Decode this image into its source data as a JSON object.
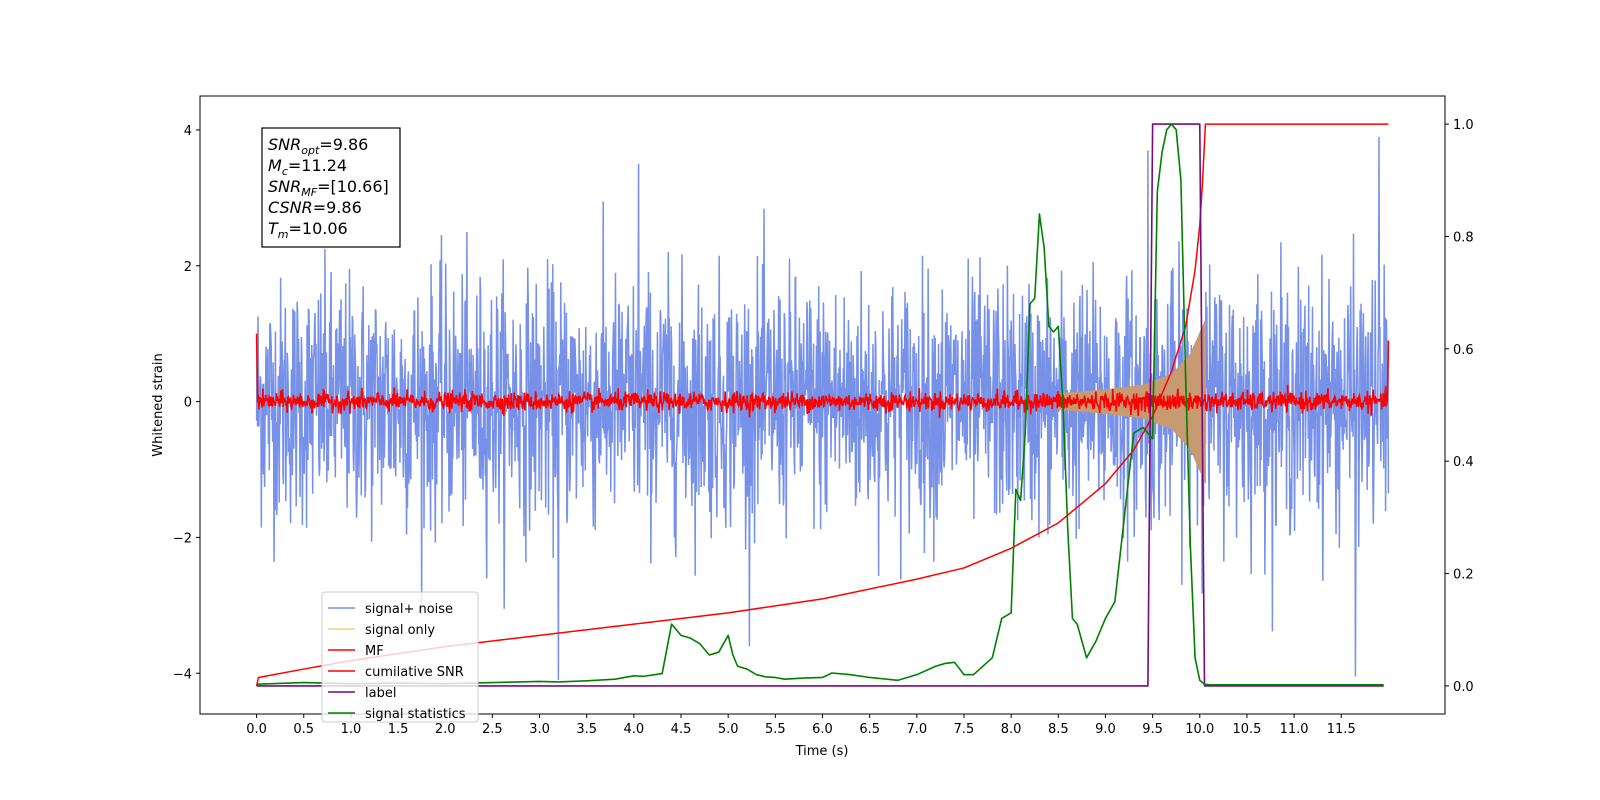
{
  "chart_data": {
    "type": "line",
    "xlabel": "Time (s)",
    "ylabel_left": "Whitened strain",
    "ylabel_right": "",
    "xlim": [
      -0.6,
      12.6
    ],
    "ylim_left": [
      -4.6,
      4.5
    ],
    "ylim_right": [
      -0.05,
      1.05
    ],
    "x_ticks": [
      0.0,
      0.5,
      1.0,
      1.5,
      2.0,
      2.5,
      3.0,
      3.5,
      4.0,
      4.5,
      5.0,
      5.5,
      6.0,
      6.5,
      7.0,
      7.5,
      8.0,
      8.5,
      9.0,
      9.5,
      10.0,
      10.5,
      11.0,
      11.5
    ],
    "x_tick_labels": [
      "0.0",
      "0.5",
      "1.0",
      "1.5",
      "2.0",
      "2.5",
      "3.0",
      "3.5",
      "4.0",
      "4.5",
      "5.0",
      "5.5",
      "6.0",
      "6.5",
      "7.0",
      "7.5",
      "8.0",
      "8.5",
      "9.0",
      "9.5",
      "10.0",
      "10.5",
      "11.0",
      "11.5"
    ],
    "y_ticks_left": [
      -4,
      -2,
      0,
      2,
      4
    ],
    "y_tick_labels_left": [
      "−4",
      "−2",
      "0",
      "2",
      "4"
    ],
    "y_ticks_right": [
      0.0,
      0.2,
      0.4,
      0.6,
      0.8,
      1.0
    ],
    "y_tick_labels_right": [
      "0.0",
      "0.2",
      "0.4",
      "0.6",
      "0.8",
      "1.0"
    ],
    "grid": false,
    "legend_position": "bottom-left",
    "annotations": [
      {
        "name": "SNR",
        "sub": "opt",
        "value": "=9.86"
      },
      {
        "name": "M",
        "sub": "c",
        "value": "=11.24"
      },
      {
        "name": "SNR",
        "sub": "MF",
        "value": "=[10.66]"
      },
      {
        "name": "CSNR",
        "sub": "",
        "value": "=9.86"
      },
      {
        "name": "T",
        "sub": "m",
        "value": "=10.06"
      }
    ],
    "series": [
      {
        "name": "signal+ noise",
        "color": "#7791e8",
        "axis": "left",
        "x_range": [
          0.0,
          12.0
        ],
        "amplitude_std": 0.9,
        "notable_peaks": [
          {
            "x": 4.05,
            "y": 3.5
          },
          {
            "x": 11.9,
            "y": 3.9
          },
          {
            "x": 9.45,
            "y": 3.7
          },
          {
            "x": 3.2,
            "y": -4.1
          },
          {
            "x": 11.65,
            "y": -4.05
          }
        ]
      },
      {
        "name": "signal only",
        "color": "#f5cf73",
        "axis": "left",
        "x_range": [
          8.5,
          10.06
        ],
        "envelope": {
          "x": [
            8.5,
            9.0,
            9.4,
            9.7,
            9.9,
            10.06
          ],
          "amp": [
            0.12,
            0.18,
            0.25,
            0.4,
            0.7,
            1.2
          ]
        }
      },
      {
        "name": "MF",
        "color": "#ff0000",
        "axis": "left",
        "x_range": [
          0.0,
          12.0
        ],
        "amplitude_std": 0.07,
        "start_value": 1.0,
        "end_value": 0.9
      },
      {
        "name": "cumilative SNR",
        "color": "#ff0000",
        "axis": "right",
        "x": [
          0.0,
          0.02,
          0.5,
          1.0,
          2.0,
          3.0,
          4.0,
          5.0,
          6.0,
          7.0,
          7.5,
          8.0,
          8.5,
          9.0,
          9.3,
          9.5,
          9.7,
          9.85,
          9.95,
          10.0,
          10.03,
          10.06,
          12.0
        ],
        "y": [
          0.0,
          0.015,
          0.03,
          0.045,
          0.07,
          0.09,
          0.11,
          0.13,
          0.155,
          0.19,
          0.21,
          0.245,
          0.29,
          0.36,
          0.42,
          0.48,
          0.56,
          0.64,
          0.74,
          0.82,
          0.9,
          1.0,
          1.0
        ]
      },
      {
        "name": "label",
        "color": "#7a0a7a",
        "axis": "right",
        "x": [
          0.0,
          9.45,
          9.5,
          10.0,
          10.05,
          11.95
        ],
        "y": [
          0.0,
          0.0,
          1.0,
          1.0,
          0.0,
          0.0
        ]
      },
      {
        "name": "signal statistics",
        "color": "#008000",
        "axis": "right",
        "x": [
          0.0,
          0.5,
          1.0,
          1.5,
          2.0,
          2.5,
          3.0,
          3.2,
          3.5,
          3.8,
          4.0,
          4.1,
          4.3,
          4.4,
          4.5,
          4.6,
          4.7,
          4.8,
          4.9,
          5.0,
          5.05,
          5.1,
          5.2,
          5.3,
          5.4,
          5.5,
          5.6,
          5.8,
          6.0,
          6.1,
          6.3,
          6.5,
          6.8,
          7.0,
          7.2,
          7.3,
          7.4,
          7.5,
          7.6,
          7.8,
          7.9,
          8.0,
          8.05,
          8.1,
          8.15,
          8.2,
          8.25,
          8.3,
          8.35,
          8.4,
          8.45,
          8.5,
          8.55,
          8.6,
          8.65,
          8.7,
          8.8,
          8.9,
          9.0,
          9.1,
          9.2,
          9.3,
          9.4,
          9.5,
          9.55,
          9.6,
          9.65,
          9.7,
          9.75,
          9.8,
          9.85,
          9.9,
          9.95,
          10.0,
          10.05,
          10.1,
          10.2,
          10.5,
          11.0,
          11.5,
          11.95
        ],
        "y": [
          0.003,
          0.006,
          0.004,
          0.005,
          0.004,
          0.006,
          0.008,
          0.007,
          0.009,
          0.012,
          0.018,
          0.017,
          0.022,
          0.11,
          0.09,
          0.085,
          0.075,
          0.055,
          0.06,
          0.09,
          0.055,
          0.035,
          0.03,
          0.02,
          0.016,
          0.015,
          0.012,
          0.014,
          0.015,
          0.023,
          0.02,
          0.015,
          0.01,
          0.02,
          0.035,
          0.04,
          0.042,
          0.02,
          0.02,
          0.05,
          0.12,
          0.13,
          0.35,
          0.33,
          0.45,
          0.68,
          0.69,
          0.84,
          0.78,
          0.64,
          0.63,
          0.64,
          0.5,
          0.28,
          0.12,
          0.11,
          0.05,
          0.08,
          0.12,
          0.15,
          0.3,
          0.45,
          0.46,
          0.44,
          0.88,
          0.95,
          0.99,
          1.0,
          0.99,
          0.9,
          0.55,
          0.25,
          0.05,
          0.01,
          0.003,
          0.002,
          0.002,
          0.002,
          0.002,
          0.002,
          0.002
        ]
      }
    ]
  }
}
